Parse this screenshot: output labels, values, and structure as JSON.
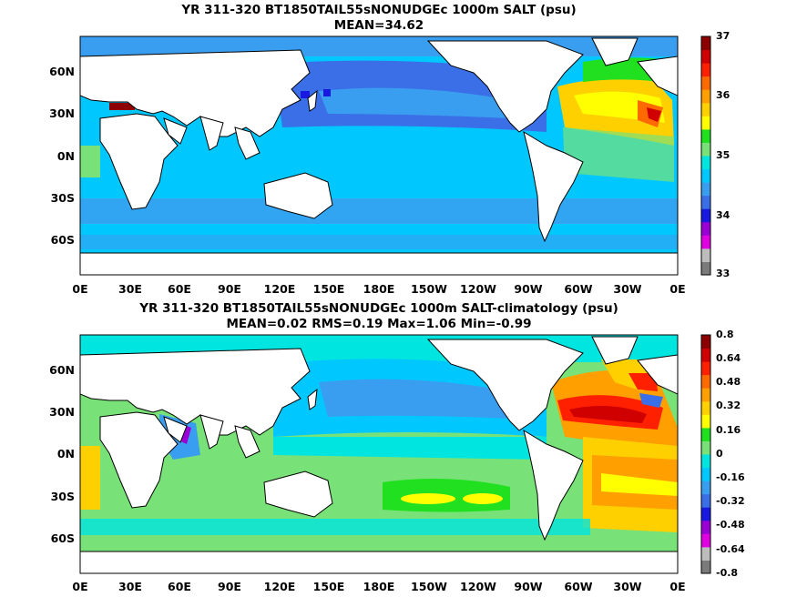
{
  "map1": {
    "title": "YR 311-320 BT1850TAIL55sNONUDGEc 1000m SALT (psu)",
    "subtitle": "MEAN=34.62",
    "lat_labels": [
      "60N",
      "30N",
      "0N",
      "30S",
      "60S"
    ],
    "lon_labels": [
      "0E",
      "30E",
      "60E",
      "90E",
      "120E",
      "150E",
      "180E",
      "150W",
      "120W",
      "90W",
      "60W",
      "30W",
      "0E"
    ],
    "colorbar": {
      "ticks": [
        "37",
        "36",
        "35",
        "34",
        "33"
      ],
      "colors": [
        "#7b7b7b",
        "#bdbdbd",
        "#e100e1",
        "#9a00d6",
        "#1818e0",
        "#3a6fe8",
        "#3a9ef0",
        "#00c8ff",
        "#00e5e0",
        "#78e278",
        "#20e020",
        "#ffff00",
        "#ffd000",
        "#ffa000",
        "#ff6a00",
        "#ff2000",
        "#d00000",
        "#8c0000"
      ]
    }
  },
  "map2": {
    "title": "YR 311-320 BT1850TAIL55sNONUDGEc 1000m SALT-climatology (psu)",
    "subtitle": "MEAN=0.02   RMS=0.19   Max=1.06   Min=-0.99",
    "lat_labels": [
      "60N",
      "30N",
      "0N",
      "30S",
      "60S"
    ],
    "lon_labels": [
      "0E",
      "30E",
      "60E",
      "90E",
      "120E",
      "150E",
      "180E",
      "150W",
      "120W",
      "90W",
      "60W",
      "30W",
      "0E"
    ],
    "colorbar": {
      "ticks": [
        "0.8",
        "0.64",
        "0.48",
        "0.32",
        "0.16",
        "0",
        "-0.16",
        "-0.32",
        "-0.48",
        "-0.64",
        "-0.8"
      ],
      "colors": [
        "#7b7b7b",
        "#bdbdbd",
        "#e100e1",
        "#9a00d6",
        "#1818e0",
        "#3a6fe8",
        "#3a9ef0",
        "#00c8ff",
        "#00e5e0",
        "#78e278",
        "#20e020",
        "#ffff00",
        "#ffd000",
        "#ffa000",
        "#ff6a00",
        "#ff2000",
        "#d00000",
        "#8c0000"
      ]
    }
  }
}
